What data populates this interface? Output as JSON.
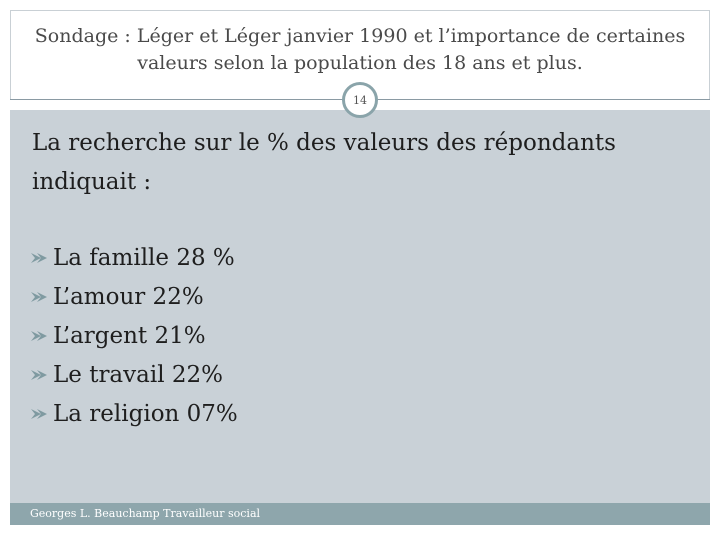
{
  "slide": {
    "title_lines": [
      "Sondage :  Léger et Léger janvier 1990 et l’importance de certaines",
      "valeurs selon la population des 18 ans et plus."
    ],
    "page_number": "14",
    "intro_lines": [
      "La recherche sur le % des valeurs des répondants",
      "indiquait :"
    ],
    "bullets": [
      "La famille 28 %",
      "L’amour 22%",
      "L’argent 21%",
      "Le travail 22%",
      "La religion 07%"
    ],
    "bullet_icon": "arrow-bullet-icon",
    "footer": "Georges L. Beauchamp Travailleur social"
  },
  "colors": {
    "content_background": "#c9d1d7",
    "footer_background": "#8ea6ac",
    "page_number_ring": "#8aa4aa",
    "bullet": "#7f9aa1"
  }
}
